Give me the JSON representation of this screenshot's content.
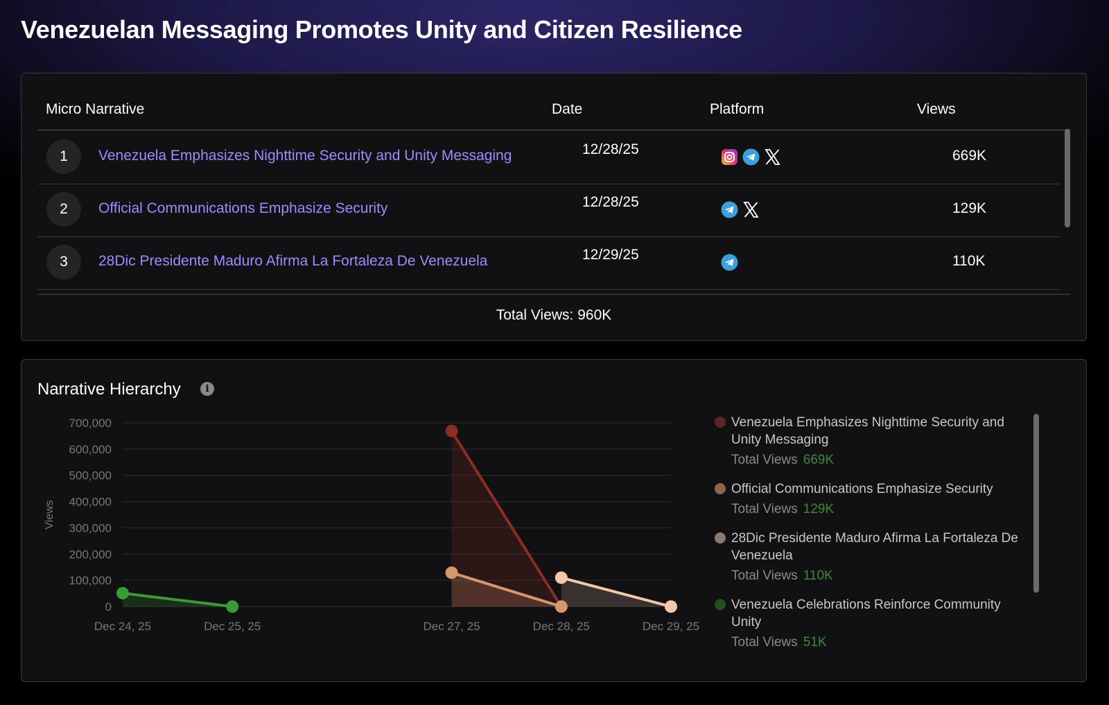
{
  "page": {
    "title": "Venezuelan Messaging Promotes Unity and Citizen Resilience"
  },
  "table": {
    "headers": {
      "narrative": "Micro Narrative",
      "date": "Date",
      "platform": "Platform",
      "views": "Views"
    },
    "rows": [
      {
        "num": "1",
        "title": "Venezuela Emphasizes Nighttime Security and Unity Messaging",
        "date": "12/28/25",
        "platforms": [
          "instagram-icon",
          "telegram-icon",
          "x-icon"
        ],
        "views": "669K"
      },
      {
        "num": "2",
        "title": "Official Communications Emphasize Security",
        "date": "12/28/25",
        "platforms": [
          "telegram-icon",
          "x-icon"
        ],
        "views": "129K"
      },
      {
        "num": "3",
        "title": "28Dic Presidente Maduro Afirma La Fortaleza De Venezuela",
        "date": "12/29/25",
        "platforms": [
          "telegram-icon"
        ],
        "views": "110K"
      }
    ],
    "total": "Total Views: 960K"
  },
  "chart_section": {
    "title": "Narrative Hierarchy",
    "info_icon": "info-icon",
    "legend": [
      {
        "name": "Venezuela Emphasizes Nighttime Security and Unity Messaging",
        "total_label": "Total Views",
        "total": "669K",
        "color": "#5a2620"
      },
      {
        "name": "Official Communications Emphasize Security",
        "total_label": "Total Views",
        "total": "129K",
        "color": "#8a6650"
      },
      {
        "name": "28Dic Presidente Maduro Afirma La Fortaleza De Venezuela",
        "total_label": "Total Views",
        "total": "110K",
        "color": "#8a7a6e"
      },
      {
        "name": "Venezuela Celebrations Reinforce Community Unity",
        "total_label": "Total Views",
        "total": "51K",
        "color": "#22501f"
      }
    ]
  },
  "chart_data": {
    "type": "line",
    "ylabel": "Views",
    "ylim": [
      0,
      700000
    ],
    "yticks": [
      "0",
      "100,000",
      "200,000",
      "300,000",
      "400,000",
      "500,000",
      "600,000",
      "700,000"
    ],
    "ytick_values": [
      0,
      100000,
      200000,
      300000,
      400000,
      500000,
      600000,
      700000
    ],
    "x": [
      "Dec 24, 25",
      "Dec 25, 25",
      "Dec 27, 25",
      "Dec 28, 25",
      "Dec 29, 25"
    ],
    "grid": true,
    "series": [
      {
        "name": "Venezuela Emphasizes Nighttime Security and Unity Messaging",
        "color": "#8a2e24",
        "points": [
          [
            "Dec 27, 25",
            669000
          ],
          [
            "Dec 28, 25",
            0
          ]
        ]
      },
      {
        "name": "Official Communications Emphasize Security",
        "color": "#d8966c",
        "points": [
          [
            "Dec 27, 25",
            129000
          ],
          [
            "Dec 28, 25",
            0
          ]
        ]
      },
      {
        "name": "28Dic Presidente Maduro Afirma La Fortaleza De Venezuela",
        "color": "#f3c8a8",
        "points": [
          [
            "Dec 28, 25",
            110000
          ],
          [
            "Dec 29, 25",
            0
          ]
        ]
      },
      {
        "name": "Venezuela Celebrations Reinforce Community Unity",
        "color": "#3a9a36",
        "points": [
          [
            "Dec 24, 25",
            51000
          ],
          [
            "Dec 25, 25",
            0
          ]
        ]
      }
    ]
  }
}
